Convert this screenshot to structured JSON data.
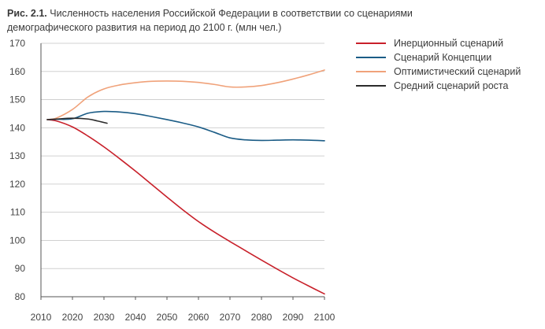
{
  "caption": {
    "label": "Рис. 2.1.",
    "line1": "Численность населения Российской Федерации в соответствии со сценариями",
    "line2": "демографического развития на период до 2100 г. (млн чел.)"
  },
  "chart_data": {
    "type": "line",
    "xlabel": "",
    "ylabel": "",
    "xlim": [
      2010,
      2100
    ],
    "ylim": [
      80,
      170
    ],
    "xticks": [
      2010,
      2020,
      2030,
      2040,
      2050,
      2060,
      2070,
      2080,
      2090,
      2100
    ],
    "yticks": [
      80,
      90,
      100,
      110,
      120,
      130,
      140,
      150,
      160,
      170
    ],
    "grid": "horizontal",
    "legend_position": "top-right",
    "series": [
      {
        "name": "Инерционный сценарий",
        "color": "#c8202a",
        "x": [
          2012,
          2015,
          2020,
          2025,
          2030,
          2035,
          2040,
          2045,
          2050,
          2055,
          2060,
          2065,
          2070,
          2075,
          2080,
          2085,
          2090,
          2095,
          2100
        ],
        "y": [
          142.9,
          142.4,
          140.3,
          137.0,
          133.2,
          129.0,
          124.6,
          120.0,
          115.4,
          110.9,
          106.7,
          103.0,
          99.6,
          96.3,
          93.0,
          89.8,
          86.7,
          83.8,
          81.0
        ]
      },
      {
        "name": "Сценарий Концепции",
        "color": "#1b5c86",
        "x": [
          2012,
          2015,
          2020,
          2025,
          2030,
          2035,
          2040,
          2045,
          2050,
          2055,
          2060,
          2065,
          2070,
          2075,
          2080,
          2085,
          2090,
          2095,
          2100
        ],
        "y": [
          142.9,
          143.0,
          143.2,
          145.2,
          145.8,
          145.6,
          145.0,
          144.0,
          142.9,
          141.7,
          140.3,
          138.4,
          136.4,
          135.7,
          135.5,
          135.6,
          135.7,
          135.6,
          135.4
        ]
      },
      {
        "name": "Оптимистический сценарий",
        "color": "#f0a27a",
        "x": [
          2012,
          2015,
          2020,
          2025,
          2030,
          2035,
          2040,
          2045,
          2050,
          2055,
          2060,
          2065,
          2070,
          2075,
          2080,
          2085,
          2090,
          2095,
          2100
        ],
        "y": [
          142.9,
          143.5,
          146.5,
          151.0,
          153.8,
          155.2,
          156.0,
          156.5,
          156.6,
          156.5,
          156.1,
          155.4,
          154.5,
          154.5,
          155.0,
          156.0,
          157.3,
          158.8,
          160.5
        ]
      },
      {
        "name": "Средний сценарий роста",
        "color": "#2b2b2b",
        "x": [
          2012,
          2015,
          2020,
          2025,
          2028,
          2031
        ],
        "y": [
          142.9,
          143.1,
          143.4,
          143.1,
          142.4,
          141.6
        ]
      }
    ]
  }
}
